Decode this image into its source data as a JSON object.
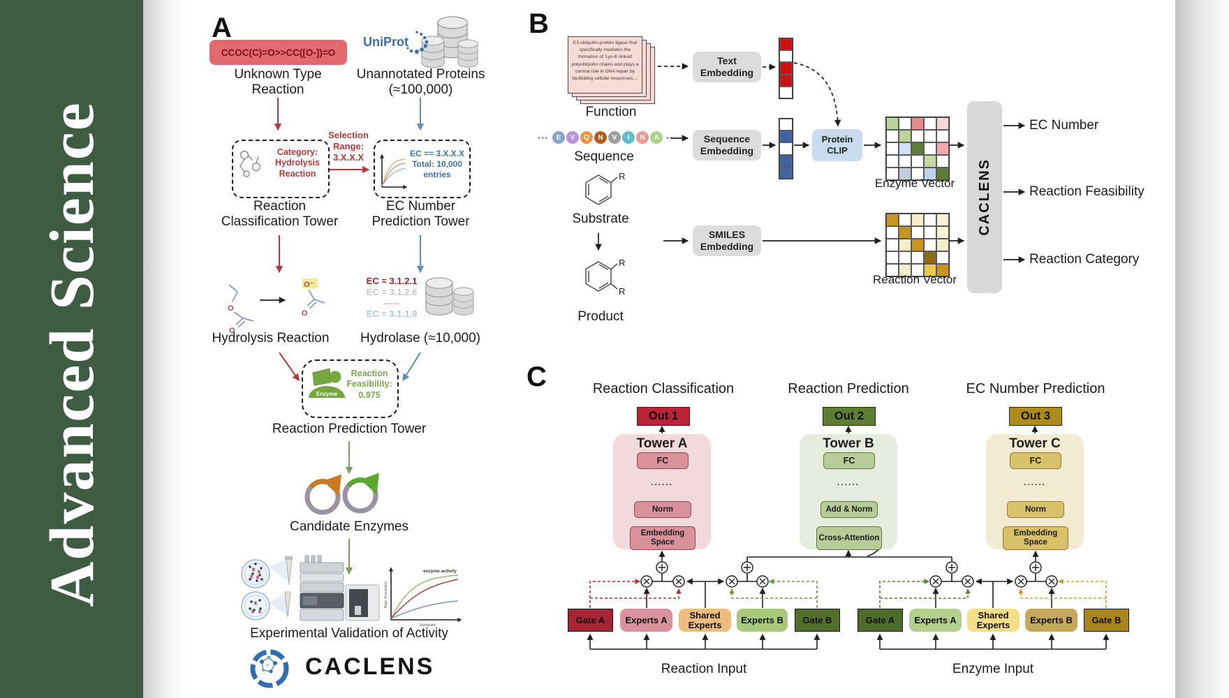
{
  "journal": {
    "title": "Advanced Science"
  },
  "colors": {
    "sidebar_green": "#3e5c41",
    "accent_red": "#b4383a",
    "accent_blue": "#5c8cb8",
    "accent_green": "#7d9d55",
    "out1_red": "#bb2436",
    "out2_green": "#5d7d33",
    "out3_gold": "#ad8c1e",
    "gate_a_reaction": "#a62433",
    "experts_a_reaction": "#d9929c",
    "shared_reaction": "#edbd80",
    "experts_b_reaction": "#a9ca7d",
    "gate_b_reaction": "#52702c",
    "gate_a_enzyme": "#4e6b2c",
    "experts_a_enzyme": "#b4d08e",
    "shared_enzyme": "#f5dd8a",
    "experts_b_enzyme": "#c4a95c",
    "gate_b_enzyme": "#a8861d"
  },
  "panelA": {
    "label": "A",
    "smiles": "CCOC(C)=O>>CC([O-])=O",
    "unknown_reaction": "Unknown Type Reaction",
    "uniprot": "UniProt",
    "unannotated": "Unannotated Proteins (≈100,000)",
    "category_box": "Category: Hydrolysis Reaction",
    "selection_range": "Selection Range: 3.X.X.X",
    "ec_box_line1": "EC == 3.X.X.X",
    "ec_box_line2": "Total: 10,000 entries",
    "classification_tower": "Reaction Classification Tower",
    "ec_tower": "EC Number Prediction Tower",
    "hydrolysis": "Hydrolysis Reaction",
    "ec_list": [
      "EC = 3.1.2.1",
      "EC = 3.1.2.6",
      ".......",
      "EC = 3.1.1.9"
    ],
    "hydrolase": "Hydrolase (≈10,000)",
    "enzyme_badge": "Enzyme",
    "feasibility": "Reaction Feasibility: 0.975",
    "prediction_tower": "Reaction Prediction Tower",
    "candidate_enzymes": "Candidate Enzymes",
    "validation": "Experimental Validation of Activity",
    "logo_text": "CACLENS",
    "oxygen": "O",
    "oxygen_minus": "O⁻",
    "activity_plot": {
      "ylabel": "Rate of reaction",
      "xlabel": "Substrate",
      "annotation": "enzyme activity"
    }
  },
  "panelB": {
    "label": "B",
    "function_text": "E3 ubiquitin-protein ligase that specifically mediates the formation of 'Lys-6'-linked polyubiquitin chains and plays a central role in DNA repair by facilitating cellular responses....",
    "function_label": "Function",
    "ellipsis": "···",
    "residues": [
      {
        "letter": "E",
        "color": "#86a5c9"
      },
      {
        "letter": "V",
        "color": "#bb90da"
      },
      {
        "letter": "Q",
        "color": "#e79540"
      },
      {
        "letter": "N",
        "color": "#b25a20"
      },
      {
        "letter": "V",
        "color": "#9e9e9e"
      },
      {
        "letter": "I",
        "color": "#64b9ca"
      },
      {
        "letter": "N",
        "color": "#e69b94"
      },
      {
        "letter": "A",
        "color": "#acd28b"
      }
    ],
    "sequence_label": "Sequence",
    "substrate_label": "Substrate",
    "product_label": "Product",
    "r_group": "R",
    "text_embedding": "Text Embedding",
    "sequence_embedding": "Sequence Embedding",
    "smiles_embedding": "SMILES Embedding",
    "protein_clip": "Protein CLIP",
    "enzyme_vector_label": "Enzyme Vector",
    "reaction_vector_label": "Reaction Vector",
    "caclens": "CACLENS",
    "outputs": [
      "EC Number",
      "Reaction Feasibility",
      "Reaction Category"
    ],
    "text_vector": [
      [
        "#c81414"
      ],
      [
        "#ffffff"
      ],
      [
        "#c81414"
      ],
      [
        "#c81414"
      ],
      [
        "#ffffff"
      ]
    ],
    "seq_vector": [
      [
        "#ffffff"
      ],
      [
        "#3f62a0"
      ],
      [
        "#ffffff"
      ],
      [
        "#3f62a0"
      ],
      [
        "#3f62a0"
      ]
    ],
    "enzyme_vector": [
      [
        "#b8d49b",
        "#ffffff",
        "#e58a8c",
        "#ffffff",
        "#f6d8da"
      ],
      [
        "#ffffff",
        "#b8d49b",
        "#ffffff",
        "#ffffff",
        "#ffffff"
      ],
      [
        "#ffffff",
        "#cfe0f2",
        "#5e7d39",
        "#ffffff",
        "#f0a9ad"
      ],
      [
        "#ffffff",
        "#ffffff",
        "#ffffff",
        "#c4db9f",
        "#ffffff"
      ],
      [
        "#ffffff",
        "#c3cdd9",
        "#ffffff",
        "#bdd4ec",
        "#5e7d39"
      ]
    ],
    "reaction_vector": [
      [
        "#c89422",
        "#ffffff",
        "#f6eecb",
        "#ffffff",
        "#faf3da"
      ],
      [
        "#ffffff",
        "#c89422",
        "#ffffff",
        "#ffffff",
        "#f8f1d8"
      ],
      [
        "#ffffff",
        "#f6eecb",
        "#c89422",
        "#ffffff",
        "#f6eecb"
      ],
      [
        "#ffffff",
        "#ffffff",
        "#ffffff",
        "#8a6a12",
        "#ffffff"
      ],
      [
        "#ffffff",
        "#f6eecb",
        "#ffffff",
        "#eac94e",
        "#c89422"
      ]
    ]
  },
  "panelC": {
    "label": "C",
    "headings": [
      "Reaction Classification",
      "Reaction Prediction",
      "EC Number Prediction"
    ],
    "towers": [
      {
        "out": "Out 1",
        "name": "Tower A",
        "fc": "FC",
        "dots": "......",
        "mid": "Norm",
        "bottom": "Embedding Space"
      },
      {
        "out": "Out 2",
        "name": "Tower B",
        "fc": "FC",
        "dots": "......",
        "mid": "Add & Norm",
        "bottom": "Cross-Attention"
      },
      {
        "out": "Out 3",
        "name": "Tower C",
        "fc": "FC",
        "dots": "......",
        "mid": "Norm",
        "bottom": "Embedding Space"
      }
    ],
    "groups": [
      {
        "gate_a": "Gate A",
        "experts_a": "Experts A",
        "shared": "Shared Experts",
        "experts_b": "Experts B",
        "gate_b": "Gate B",
        "input": "Reaction Input"
      },
      {
        "gate_a": "Gate A",
        "experts_a": "Experts A",
        "shared": "Shared Experts",
        "experts_b": "Experts B",
        "gate_b": "Gate B",
        "input": "Enzyme Input"
      }
    ]
  }
}
